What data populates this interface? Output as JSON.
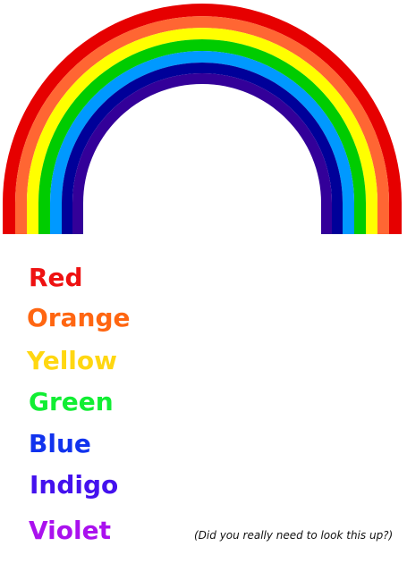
{
  "rainbow_bands": [
    {
      "name": "red",
      "color": "#e60000"
    },
    {
      "name": "orange",
      "color": "#ff6633"
    },
    {
      "name": "yellow",
      "color": "#ffff00"
    },
    {
      "name": "green",
      "color": "#00cc00"
    },
    {
      "name": "blue",
      "color": "#0099ff"
    },
    {
      "name": "indigo",
      "color": "#000099"
    },
    {
      "name": "violet",
      "color": "#330099"
    }
  ],
  "colors": [
    {
      "label": "Red",
      "color": "#ee1111"
    },
    {
      "label": "Orange",
      "color": "#ff6611"
    },
    {
      "label": "Yellow",
      "color": "#ffd711"
    },
    {
      "label": "Green",
      "color": "#11ee33"
    },
    {
      "label": "Blue",
      "color": "#1133ee"
    },
    {
      "label": "Indigo",
      "color": "#4411ee"
    },
    {
      "label": "Violet",
      "color": "#aa11ee"
    }
  ],
  "note": "(Did you really need to look this up?)"
}
